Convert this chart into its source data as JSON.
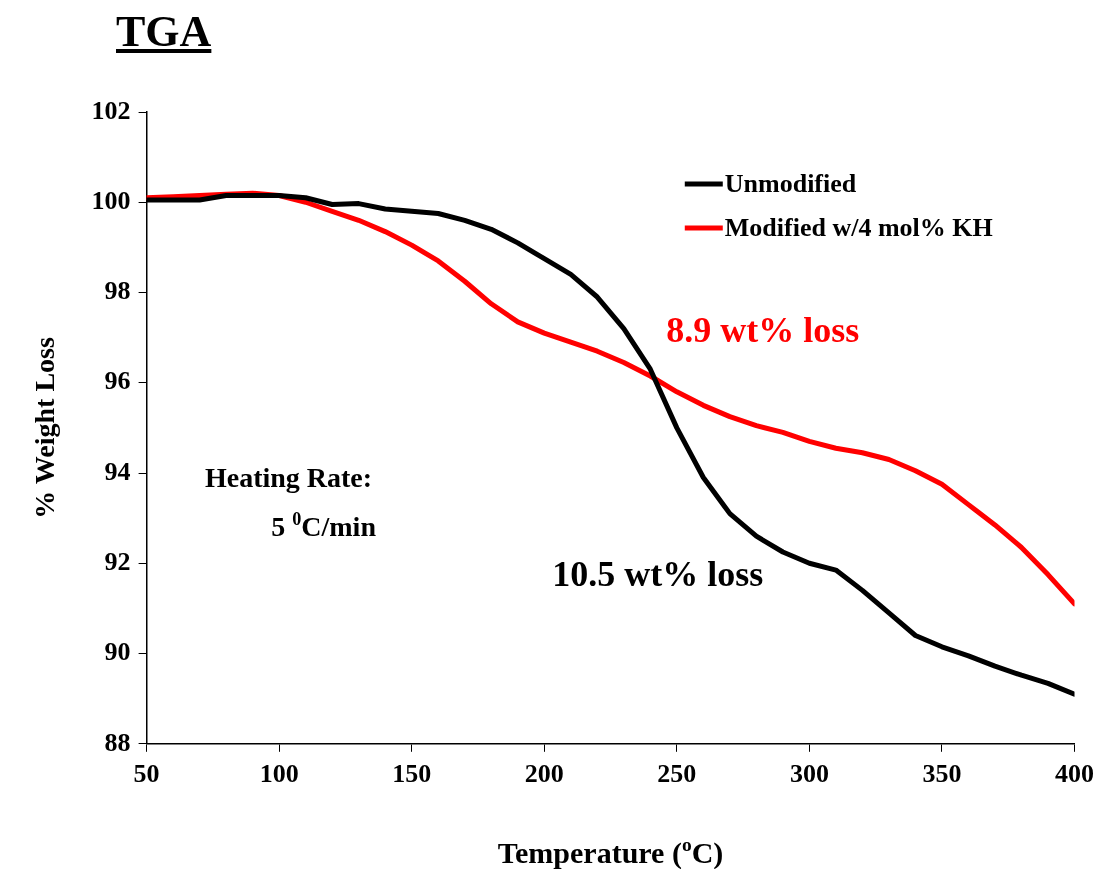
{
  "chart_data": {
    "type": "line",
    "title": "TGA",
    "xlabel": "Temperature ($^{o}$C)",
    "ylabel": "% Weight Loss",
    "xlim": [
      50,
      400
    ],
    "xticks": [
      50,
      100,
      150,
      200,
      250,
      300,
      350,
      400
    ],
    "ylim": [
      88,
      102
    ],
    "yticks": [
      88,
      90,
      92,
      94,
      96,
      98,
      100,
      102
    ],
    "grid": false,
    "legend": "top right",
    "marker": "none",
    "line_style": "solid",
    "series": [
      {
        "name": "Unmodified",
        "color": "#000000",
        "x": [
          50,
          60,
          70,
          80,
          90,
          100,
          110,
          120,
          130,
          140,
          150,
          160,
          170,
          180,
          190,
          200,
          210,
          220,
          230,
          240,
          250,
          260,
          270,
          280,
          290,
          300,
          310,
          320,
          330,
          340,
          350,
          360,
          370,
          380,
          390,
          400
        ],
        "values": [
          100.05,
          100.05,
          100.05,
          100.15,
          100.15,
          100.15,
          100.1,
          99.95,
          99.97,
          99.85,
          99.8,
          99.75,
          99.6,
          99.4,
          99.1,
          98.75,
          98.4,
          97.9,
          97.2,
          96.3,
          95.0,
          93.9,
          93.1,
          92.6,
          92.25,
          92.0,
          91.85,
          91.4,
          90.9,
          90.4,
          90.15,
          89.95,
          89.72,
          89.52,
          89.34,
          89.1
        ]
      },
      {
        "name": "Modified w/4 mol% KH",
        "color": "#ff0000",
        "x": [
          50,
          60,
          70,
          80,
          90,
          100,
          110,
          120,
          130,
          140,
          150,
          160,
          170,
          180,
          190,
          200,
          210,
          220,
          230,
          240,
          250,
          260,
          270,
          280,
          290,
          300,
          310,
          320,
          330,
          340,
          350,
          360,
          370,
          380,
          390,
          400
        ],
        "values": [
          100.1,
          100.12,
          100.15,
          100.18,
          100.2,
          100.15,
          100.0,
          99.8,
          99.6,
          99.35,
          99.05,
          98.7,
          98.25,
          97.75,
          97.35,
          97.1,
          96.9,
          96.7,
          96.45,
          96.15,
          95.8,
          95.5,
          95.25,
          95.05,
          94.9,
          94.7,
          94.55,
          94.45,
          94.3,
          94.05,
          93.75,
          93.3,
          92.85,
          92.35,
          91.75,
          91.1
        ]
      }
    ],
    "annotations": [
      "10.5 wt% loss",
      "8.9 wt% loss",
      "Heating Rate:",
      "5 $^{0}$C/min"
    ]
  }
}
